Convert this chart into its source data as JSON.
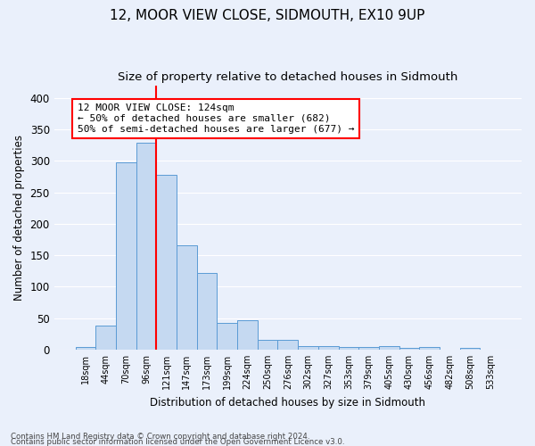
{
  "title": "12, MOOR VIEW CLOSE, SIDMOUTH, EX10 9UP",
  "subtitle": "Size of property relative to detached houses in Sidmouth",
  "xlabel": "Distribution of detached houses by size in Sidmouth",
  "ylabel": "Number of detached properties",
  "footnote1": "Contains HM Land Registry data © Crown copyright and database right 2024.",
  "footnote2": "Contains public sector information licensed under the Open Government Licence v3.0.",
  "categories": [
    "18sqm",
    "44sqm",
    "70sqm",
    "96sqm",
    "121sqm",
    "147sqm",
    "173sqm",
    "199sqm",
    "224sqm",
    "250sqm",
    "276sqm",
    "302sqm",
    "327sqm",
    "353sqm",
    "379sqm",
    "405sqm",
    "430sqm",
    "456sqm",
    "482sqm",
    "508sqm",
    "533sqm"
  ],
  "values": [
    4,
    38,
    297,
    328,
    278,
    166,
    122,
    43,
    46,
    15,
    16,
    5,
    6,
    4,
    4,
    5,
    3,
    4,
    0,
    3,
    0
  ],
  "bar_color": "#c5d9f1",
  "bar_edge_color": "#5b9bd5",
  "red_line_index": 4,
  "annotation_title": "12 MOOR VIEW CLOSE: 124sqm",
  "annotation_line1": "← 50% of detached houses are smaller (682)",
  "annotation_line2": "50% of semi-detached houses are larger (677) →",
  "vline_color": "red",
  "ylim": [
    0,
    420
  ],
  "yticks": [
    0,
    50,
    100,
    150,
    200,
    250,
    300,
    350,
    400
  ],
  "background_color": "#eaf0fb",
  "grid_color": "white"
}
